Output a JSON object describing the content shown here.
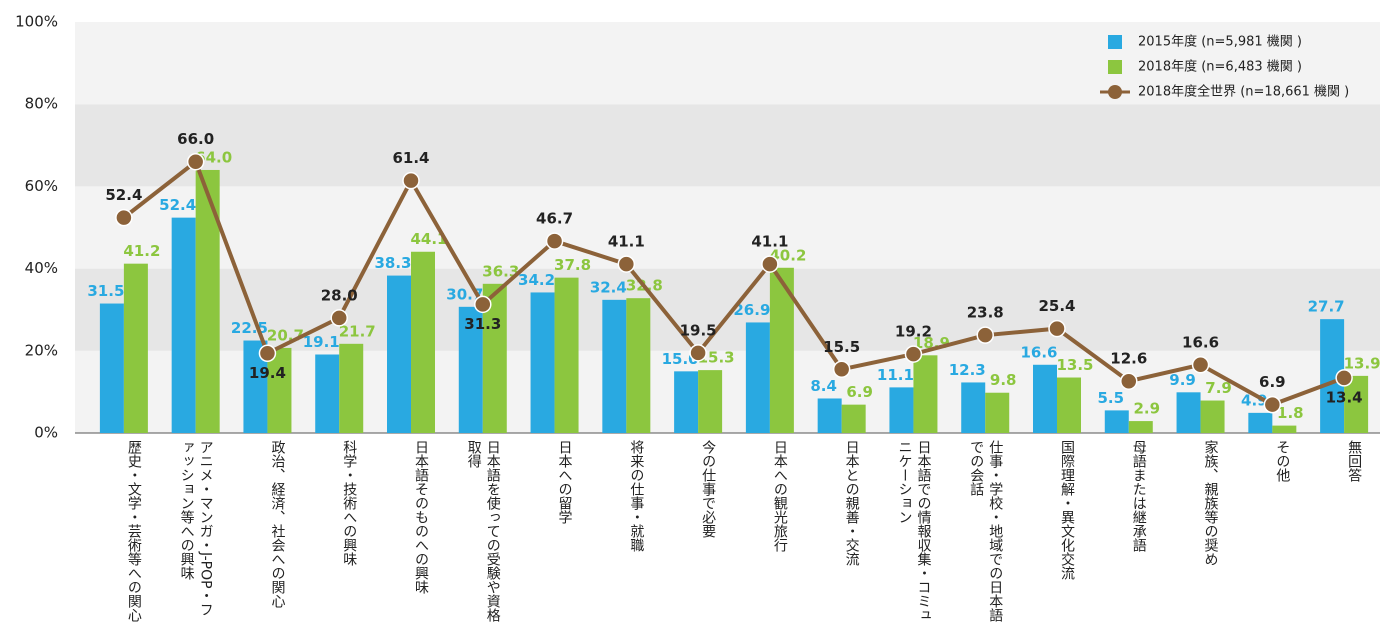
{
  "chart_data": {
    "type": "bar_line",
    "categories": [
      "歴史・文学・芸術等への関心",
      "アニメ・マンガ・J-POP・ファッション等への興味",
      "政治、経済、社会への関心",
      "科学・技術への興味",
      "日本語そのものへの興味",
      "日本語を使っての受験や資格取得",
      "日本への留学",
      "将来の仕事・就職",
      "今の仕事で必要",
      "日本への観光旅行",
      "日本との親善・交流",
      "日本語での情報収集・コミュニケーション",
      "仕事・学校・地域での日本語での会話",
      "国際理解・異文化交流",
      "母語または継承語",
      "家族、親族等の奨め",
      "その他",
      "無回答"
    ],
    "series": [
      {
        "name": "2015年度 (n=5,981 機関 )",
        "type": "bar",
        "color": "#29a9e1",
        "values": [
          31.5,
          52.4,
          22.5,
          19.1,
          38.3,
          30.7,
          34.2,
          32.4,
          15.0,
          26.9,
          8.4,
          11.1,
          12.3,
          16.6,
          5.5,
          9.9,
          4.9,
          27.7
        ],
        "value_labels": [
          "31.5",
          "52.4",
          "22.5",
          "19.1",
          "38.3",
          "30.7",
          "34.2",
          "32.4",
          "15.0",
          "26.9",
          "8.4",
          "11.1",
          "12.3",
          "16.6",
          "5.5",
          "9.9",
          "4.9",
          "27.7"
        ]
      },
      {
        "name": "2018年度 (n=6,483 機関 )",
        "type": "bar",
        "color": "#8cc63f",
        "values": [
          41.2,
          64.0,
          20.7,
          21.7,
          44.1,
          36.3,
          37.8,
          32.8,
          15.3,
          40.2,
          6.9,
          18.9,
          9.8,
          13.5,
          2.9,
          7.9,
          1.8,
          13.9
        ],
        "value_labels": [
          "41.2",
          "64.0",
          "20.7",
          "21.7",
          "44.1",
          "36.3",
          "37.8",
          "32.8",
          "15.3",
          "40.2",
          "6.9",
          "18.9",
          "9.8",
          "13.5",
          "2.9",
          "7.9",
          "1.8",
          "13.9"
        ]
      },
      {
        "name": "2018年度全世界 (n=18,661 機関 )",
        "type": "line",
        "color": "#8c6239",
        "values": [
          52.4,
          66.0,
          19.4,
          28.0,
          61.4,
          31.3,
          46.7,
          41.1,
          19.5,
          41.1,
          15.5,
          19.2,
          23.8,
          25.4,
          12.6,
          16.6,
          6.9,
          13.4
        ],
        "value_labels": [
          "52.4",
          "66.0",
          "19.4",
          "28.0",
          "61.4",
          "31.3",
          "46.7",
          "41.1",
          "19.5",
          "41.1",
          "15.5",
          "19.2",
          "23.8",
          "25.4",
          "12.6",
          "16.6",
          "6.9",
          "13.4"
        ]
      }
    ],
    "ylim": [
      0,
      100
    ],
    "yticks": [
      {
        "value": 0,
        "label": "0%"
      },
      {
        "value": 20,
        "label": "20%"
      },
      {
        "value": 40,
        "label": "40%"
      },
      {
        "value": 60,
        "label": "60%"
      },
      {
        "value": 80,
        "label": "80%"
      },
      {
        "value": 100,
        "label": "100%"
      }
    ],
    "grid": "bands",
    "legend": "top-right"
  }
}
